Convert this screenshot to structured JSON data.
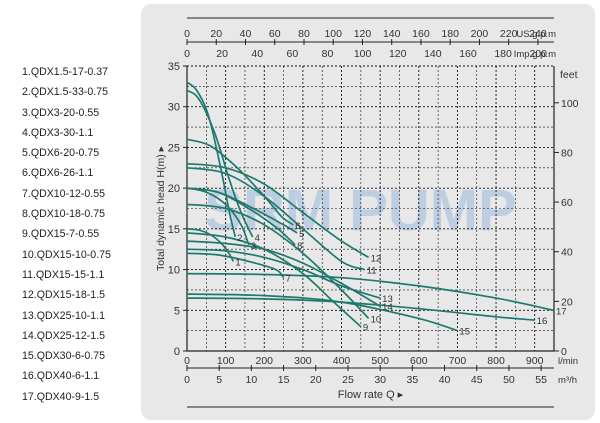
{
  "watermark": "SRM PUMP",
  "legend": [
    "1.QDX1.5-17-0.37",
    "2.QDX1.5-33-0.75",
    "3.QDX3-20-0.55",
    "4.QDX3-30-1.1",
    "5.QDX6-20-0.75",
    "6.QDX6-26-1.1",
    "7.QDX10-12-0.55",
    "8.QDX10-18-0.75",
    "9.QDX15-7-0.55",
    "10.QDX15-10-0.75",
    "11.QDX15-15-1.1",
    "12.QDX15-18-1.5",
    "13.QDX25-10-1.1",
    "14.QDX25-12-1.5",
    "15.QDX30-6-0.75",
    "16.QDX40-6-1.1",
    "17.QDX40-9-1.5"
  ],
  "colors": {
    "curve": "#1f7a6e",
    "grid": "#111111",
    "panel": "#e8e8e8",
    "watermark": "#9ab8dc"
  },
  "chart_data": {
    "type": "line",
    "xlabel": "Flow rate Q ▸",
    "ylabel": "Total dynamic head H(m) ▸",
    "x_units": "l/min",
    "y_units": "m",
    "xlim": [
      0,
      950
    ],
    "ylim": [
      0,
      35
    ],
    "grid": true,
    "x_ticks": [
      0,
      100,
      200,
      300,
      400,
      500,
      600,
      700,
      800,
      900
    ],
    "y_ticks": [
      0,
      5,
      10,
      15,
      20,
      25,
      30,
      35
    ],
    "secondary_axes": {
      "us_gpm": {
        "label": "US g.p.m",
        "ticks": [
          0,
          20,
          40,
          60,
          80,
          100,
          120,
          140,
          160,
          180,
          200,
          220,
          240
        ]
      },
      "imp_gpm": {
        "label": "Imp g.p.m",
        "ticks": [
          0,
          20,
          40,
          60,
          80,
          100,
          120,
          140,
          160,
          180,
          200
        ]
      },
      "m3h": {
        "label": "m³/h",
        "ticks": [
          0,
          5,
          10,
          15,
          20,
          25,
          30,
          35,
          40,
          45,
          50,
          55
        ]
      },
      "feet": {
        "label": "feet",
        "ticks": [
          0,
          20,
          40,
          60,
          80,
          100
        ]
      }
    },
    "series": [
      {
        "name": "1",
        "x": [
          0,
          35,
          70,
          100,
          120
        ],
        "y": [
          15,
          14.8,
          14,
          12.6,
          11
        ]
      },
      {
        "name": "2",
        "x": [
          0,
          25,
          55,
          85,
          110,
          125
        ],
        "y": [
          33,
          32,
          29,
          23,
          17,
          14
        ]
      },
      {
        "name": "3",
        "x": [
          0,
          50,
          100,
          140,
          160
        ],
        "y": [
          20,
          19.5,
          18,
          15.5,
          13
        ]
      },
      {
        "name": "4",
        "x": [
          0,
          30,
          70,
          110,
          140,
          170
        ],
        "y": [
          32,
          31,
          27,
          21,
          17,
          14
        ]
      },
      {
        "name": "5",
        "x": [
          0,
          80,
          160,
          250,
          285
        ],
        "y": [
          20,
          19.5,
          17.8,
          15.5,
          14.5
        ]
      },
      {
        "name": "6",
        "x": [
          0,
          60,
          130,
          200,
          245,
          275
        ],
        "y": [
          26,
          25.2,
          22.5,
          19,
          16.5,
          15.5
        ]
      },
      {
        "name": "7",
        "x": [
          0,
          80,
          160,
          230,
          250
        ],
        "y": [
          12,
          11.8,
          11,
          10,
          9
        ]
      },
      {
        "name": "8",
        "x": [
          0,
          80,
          160,
          230,
          270,
          280
        ],
        "y": [
          20,
          19.5,
          17.5,
          15.2,
          13.5,
          13
        ]
      },
      {
        "name": "9",
        "x": [
          0,
          100,
          200,
          300,
          380,
          450
        ],
        "y": [
          14.5,
          14,
          12.5,
          9.5,
          6,
          3
        ]
      },
      {
        "name": "10",
        "x": [
          0,
          100,
          200,
          300,
          400,
          470
        ],
        "y": [
          18,
          17.5,
          15.5,
          12,
          7.5,
          4
        ]
      },
      {
        "name": "11",
        "x": [
          0,
          100,
          200,
          300,
          400,
          460
        ],
        "y": [
          22.5,
          21.8,
          19,
          15,
          11,
          10
        ]
      },
      {
        "name": "12",
        "x": [
          0,
          100,
          200,
          300,
          400,
          470
        ],
        "y": [
          23,
          22.5,
          20.5,
          17,
          13.5,
          11.5
        ]
      },
      {
        "name": "13",
        "x": [
          0,
          100,
          200,
          300,
          400,
          500
        ],
        "y": [
          12.5,
          12.3,
          11.5,
          10,
          8,
          6.5
        ]
      },
      {
        "name": "14",
        "x": [
          0,
          100,
          200,
          300,
          400,
          500
        ],
        "y": [
          13.5,
          13.2,
          12.5,
          10.8,
          8.3,
          5.5
        ]
      },
      {
        "name": "15",
        "x": [
          0,
          200,
          400,
          600,
          700
        ],
        "y": [
          7,
          6.8,
          6,
          4,
          2.5
        ]
      },
      {
        "name": "16",
        "x": [
          0,
          200,
          400,
          600,
          800,
          900
        ],
        "y": [
          6.5,
          6.4,
          6,
          5.2,
          4.2,
          3.8
        ]
      },
      {
        "name": "17",
        "x": [
          0,
          200,
          400,
          600,
          800,
          950
        ],
        "y": [
          9.5,
          9.4,
          9,
          8,
          6.5,
          5
        ]
      }
    ]
  }
}
